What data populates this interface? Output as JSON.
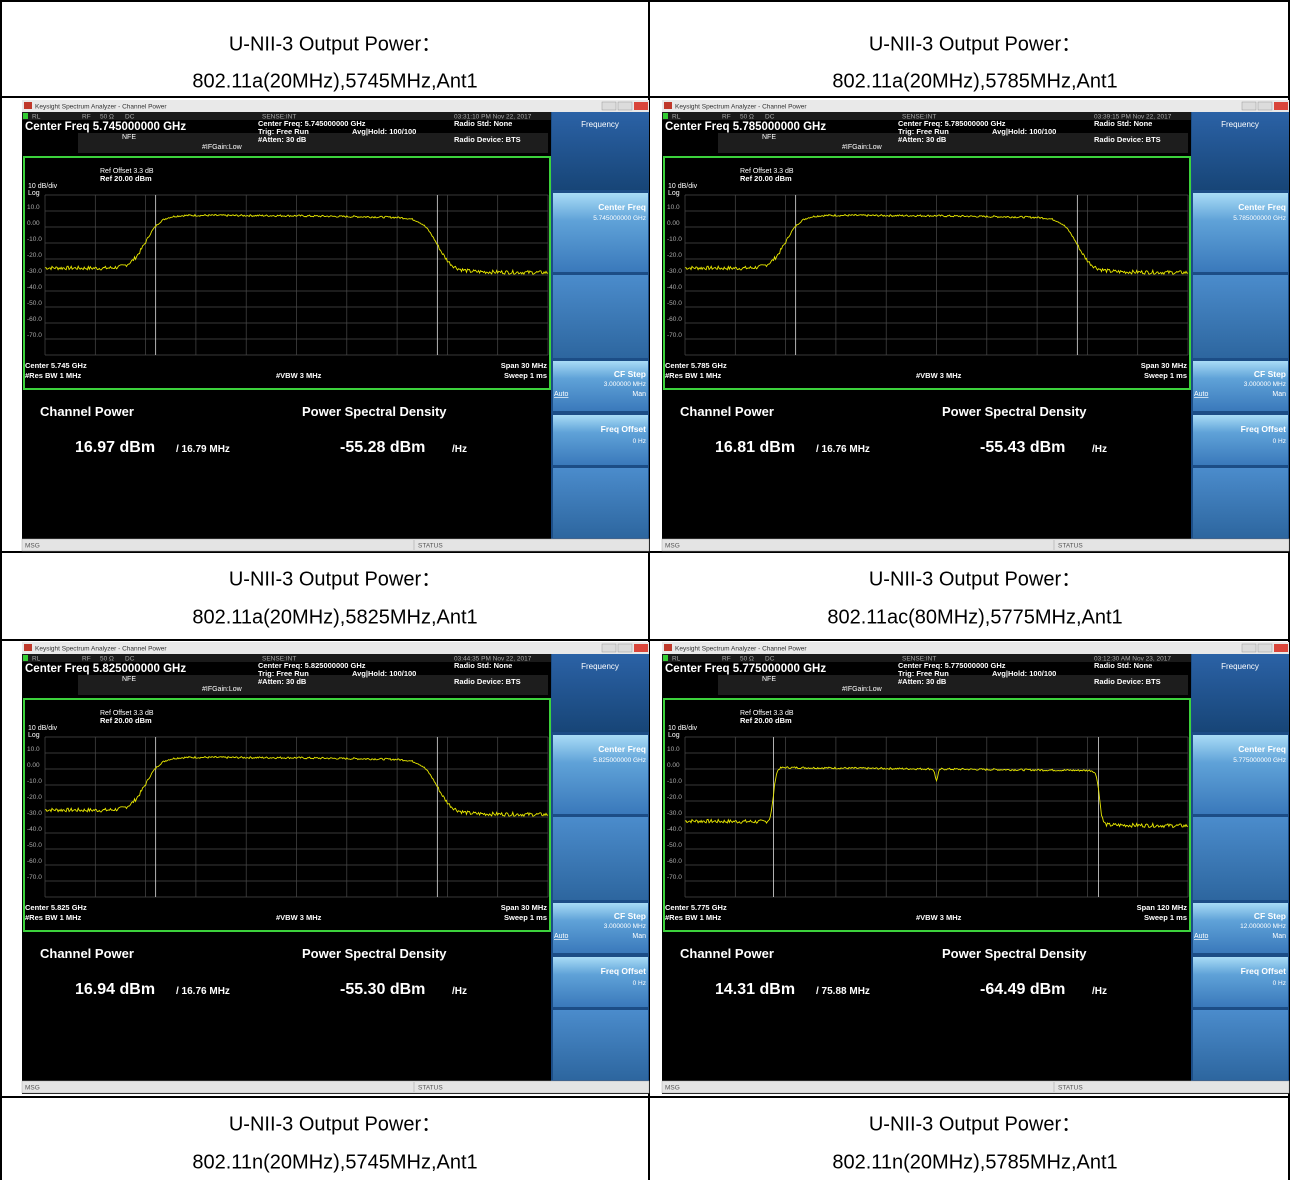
{
  "table": {
    "cells": [
      {
        "title": [
          "U-NII-3 Output Power：",
          "802.11a(20MHz),5745MHz,Ant1"
        ],
        "screen": {
          "timestamp": "03:31:10 PM Nov 22, 2017",
          "center_freq_heading": "Center Freq 5.745000000 GHz",
          "center_freq_setting": "Center Freq: 5.745000000 GHz",
          "center_label": "Center 5.745 GHz",
          "span_label": "Span 30 MHz",
          "channel_power": "16.97 dBm",
          "channel_bandwidth": "/ 16.79 MHz",
          "psd": "-55.28 dBm",
          "softkey_center_value": "5.745000000 GHz",
          "cf_step_value": "3.000000 MHz"
        }
      },
      {
        "title": [
          "U-NII-3 Output Power：",
          "802.11a(20MHz),5785MHz,Ant1"
        ],
        "screen": {
          "timestamp": "03:39:15 PM Nov 22, 2017",
          "center_freq_heading": "Center Freq 5.785000000 GHz",
          "center_freq_setting": "Center Freq: 5.785000000 GHz",
          "center_label": "Center 5.785 GHz",
          "span_label": "Span 30 MHz",
          "channel_power": "16.81 dBm",
          "channel_bandwidth": "/ 16.76 MHz",
          "psd": "-55.43 dBm",
          "softkey_center_value": "5.785000000 GHz",
          "cf_step_value": "3.000000 MHz"
        }
      },
      {
        "title": [
          "U-NII-3 Output Power：",
          "802.11a(20MHz),5825MHz,Ant1"
        ],
        "screen": {
          "timestamp": "03:44:35 PM Nov 22, 2017",
          "center_freq_heading": "Center Freq 5.825000000 GHz",
          "center_freq_setting": "Center Freq: 5.825000000 GHz",
          "center_label": "Center 5.825 GHz",
          "span_label": "Span 30 MHz",
          "channel_power": "16.94 dBm",
          "channel_bandwidth": "/ 16.76 MHz",
          "psd": "-55.30 dBm",
          "softkey_center_value": "5.825000000 GHz",
          "cf_step_value": "3.000000 MHz"
        }
      },
      {
        "title": [
          "U-NII-3 Output Power：",
          "802.11ac(80MHz),5775MHz,Ant1"
        ],
        "screen": {
          "timestamp": "03:12:30 AM Nov 23, 2017",
          "center_freq_heading": "Center Freq 5.775000000 GHz",
          "center_freq_setting": "Center Freq: 5.775000000 GHz",
          "center_label": "Center 5.775 GHz",
          "span_label": "Span 120 MHz",
          "channel_power": "14.31 dBm",
          "channel_bandwidth": "/ 75.88 MHz",
          "psd": "-64.49 dBm",
          "softkey_center_value": "5.775000000 GHz",
          "cf_step_value": "12.000000 MHz"
        }
      },
      {
        "title": [
          "U-NII-3 Output Power：",
          "802.11n(20MHz),5745MHz,Ant1"
        ]
      },
      {
        "title": [
          "U-NII-3 Output Power：",
          "802.11n(20MHz),5785MHz,Ant1"
        ]
      }
    ]
  },
  "analyzer_common": {
    "window_title": "Keysight Spectrum Analyzer - Channel Power",
    "rl": "RL",
    "rf": "RF",
    "impedance": "50 Ω",
    "coupling": "DC",
    "sense": "SENSE:INT",
    "nfe": "NFE",
    "if_gain": "#IFGain:Low",
    "trigger": "Trig: Free Run",
    "avg_hold": "Avg|Hold: 100/100",
    "atten": "#Atten: 30 dB",
    "radio_std": "Radio Std: None",
    "radio_device": "Radio Device: BTS",
    "ref_offset": "Ref Offset 3.3 dB",
    "ref_level": "Ref 20.00 dBm",
    "scale": "10 dB/div",
    "log": "Log",
    "y_labels": [
      "10.0",
      "0.00",
      "-10.0",
      "-20.0",
      "-30.0",
      "-40.0",
      "-50.0",
      "-60.0",
      "-70.0"
    ],
    "res_bw": "#Res BW 1 MHz",
    "vbw": "#VBW 3 MHz",
    "sweep": "Sweep 1 ms",
    "channel_power_title": "Channel Power",
    "psd_title": "Power Spectral Density",
    "psd_unit": "/Hz",
    "menu_title": "Frequency",
    "softkey_center": "Center Freq",
    "softkey_cf_step": "CF Step",
    "auto": "Auto",
    "man": "Man",
    "softkey_freq_offset": "Freq Offset",
    "freq_offset_value": "0 Hz",
    "msg": "MSG",
    "status": "STATUS"
  }
}
